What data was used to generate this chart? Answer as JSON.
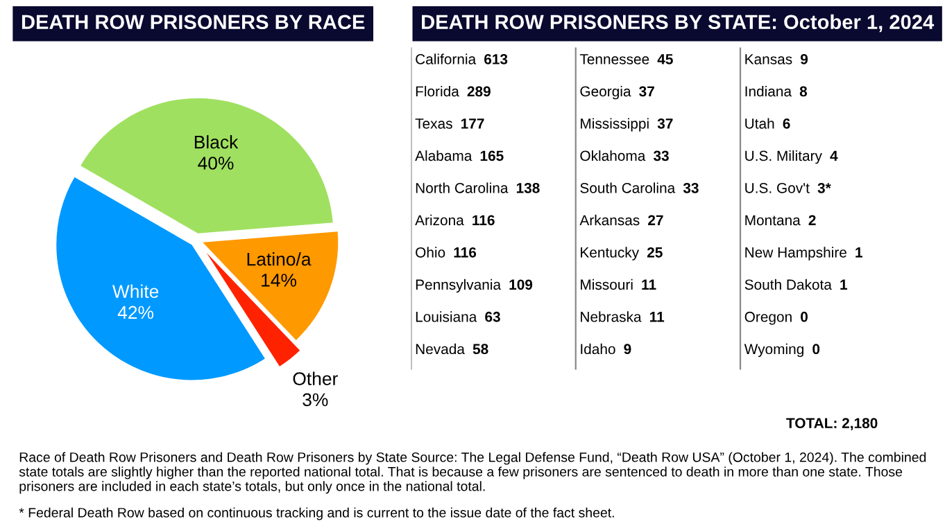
{
  "chart_data": [
    {
      "type": "pie",
      "title": "DEATH ROW PRISONERS BY RACE",
      "categories": [
        "Black",
        "Latino/a",
        "Other",
        "White"
      ],
      "values": [
        40,
        14,
        3,
        42
      ],
      "value_labels": [
        "40%",
        "14%",
        "3%",
        "42%"
      ],
      "colors": [
        "#a0e060",
        "#ff9900",
        "#ff2200",
        "#0099ff"
      ]
    },
    {
      "type": "other",
      "title": "DEATH ROW PRISONERS BY STATE: October 1, 2024",
      "categories": [
        "California",
        "Florida",
        "Texas",
        "Alabama",
        "North Carolina",
        "Arizona",
        "Ohio",
        "Pennsylvania",
        "Louisiana",
        "Nevada",
        "Tennessee",
        "Georgia",
        "Mississippi",
        "Oklahoma",
        "South Carolina",
        "Arkansas",
        "Kentucky",
        "Missouri",
        "Nebraska",
        "Idaho",
        "Kansas",
        "Indiana",
        "Utah",
        "U.S. Military",
        "U.S. Gov't",
        "Montana",
        "New Hampshire",
        "South Dakota",
        "Oregon",
        "Wyoming"
      ],
      "values": [
        613,
        289,
        177,
        165,
        138,
        116,
        116,
        109,
        63,
        58,
        45,
        37,
        37,
        33,
        33,
        27,
        25,
        11,
        11,
        9,
        9,
        8,
        6,
        4,
        3,
        2,
        1,
        1,
        0,
        0
      ],
      "value_labels": [
        "613",
        "289",
        "177",
        "165",
        "138",
        "116",
        "116",
        "109",
        "63",
        "58",
        "45",
        "37",
        "37",
        "33",
        "33",
        "27",
        "25",
        "11",
        "11",
        "9",
        "9",
        "8",
        "6",
        "4",
        "3*",
        "2",
        "1",
        "1",
        "0",
        "0"
      ],
      "annotations": [
        "TOTAL: 2,180",
        "Race of Death Row Prisoners and Death Row Prisoners by State Source: The Legal Defense Fund, “Death Row USA” (October 1, 2024). The combined state totals are slightly higher than the reported national total. That is because a few prisoners are sentenced to death in more than one state. Those prisoners are included in each state’s totals, but only once in the national total.",
        "* Federal Death Row based on continuous tracking and is current to the issue date of the fact sheet."
      ]
    }
  ]
}
